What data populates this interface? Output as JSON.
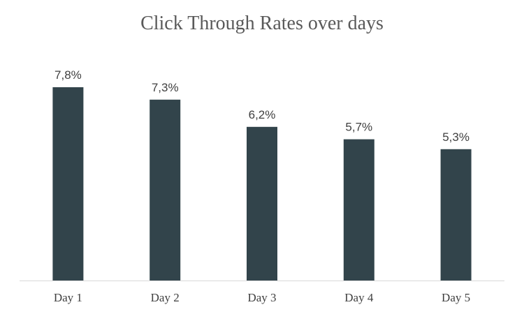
{
  "chart_data": {
    "type": "bar",
    "title": "Click Through Rates over days",
    "categories": [
      "Day 1",
      "Day 2",
      "Day 3",
      "Day 4",
      "Day 5"
    ],
    "values": [
      7.8,
      7.3,
      6.2,
      5.7,
      5.3
    ],
    "data_labels": [
      "7,8%",
      "7,3%",
      "6,2%",
      "5,7%",
      "5,3%"
    ],
    "unit": "%",
    "xlabel": "",
    "ylabel": "",
    "ylim": [
      0,
      7.8
    ],
    "grid": false,
    "legend": "none",
    "colors": {
      "bar": "#32444B",
      "axis": "#D9D9D9",
      "title": "#595959",
      "label": "#404040"
    }
  }
}
